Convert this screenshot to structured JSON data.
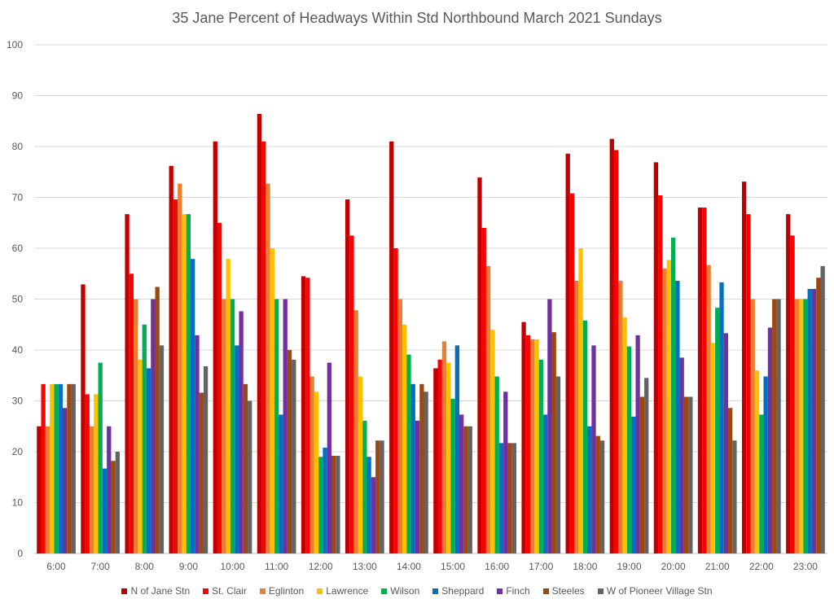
{
  "chart_data": {
    "type": "bar",
    "title": "35 Jane  Percent of Headways Within Std Northbound March 2021 Sundays",
    "xlabel": "",
    "ylabel": "",
    "ylim": [
      0,
      100
    ],
    "yticks": [
      0,
      10,
      20,
      30,
      40,
      50,
      60,
      70,
      80,
      90,
      100
    ],
    "grid": true,
    "legend_position": "bottom",
    "categories": [
      "6:00",
      "7:00",
      "8:00",
      "9:00",
      "10:00",
      "11:00",
      "12:00",
      "13:00",
      "14:00",
      "15:00",
      "16:00",
      "17:00",
      "18:00",
      "19:00",
      "20:00",
      "21:00",
      "22:00",
      "23:00"
    ],
    "series": [
      {
        "name": "N of Jane Stn",
        "color": "#C00000",
        "values": [
          25,
          52.9,
          66.7,
          76.2,
          81,
          86.4,
          54.5,
          69.6,
          81,
          36.4,
          73.9,
          45.5,
          78.6,
          81.5,
          76.9,
          68,
          73.1,
          66.7
        ]
      },
      {
        "name": "St. Clair",
        "color": "#FF0000",
        "values": [
          33.3,
          31.3,
          55,
          69.6,
          65,
          81,
          54.2,
          62.5,
          60,
          38.1,
          64,
          42.9,
          70.8,
          79.3,
          70.4,
          68,
          66.7,
          62.5
        ]
      },
      {
        "name": "Eglinton",
        "color": "#ED7D31",
        "values": [
          25,
          25,
          50,
          72.7,
          50,
          72.7,
          34.8,
          47.8,
          50,
          41.7,
          56.5,
          42.1,
          53.6,
          53.6,
          56,
          56.7,
          50,
          50
        ]
      },
      {
        "name": "Lawrence",
        "color": "#FFC000",
        "values": [
          33.3,
          31.3,
          38.1,
          66.7,
          57.9,
          60,
          31.8,
          34.8,
          45,
          37.5,
          44,
          42.1,
          60,
          46.4,
          57.7,
          41.4,
          36,
          50
        ]
      },
      {
        "name": "Wilson",
        "color": "#00B050",
        "values": [
          33.3,
          37.5,
          45,
          66.7,
          50,
          50,
          19,
          26.1,
          39.1,
          30.4,
          34.8,
          38.1,
          45.8,
          40.7,
          62.1,
          48.3,
          27.3,
          50
        ]
      },
      {
        "name": "Sheppard",
        "color": "#0070C0",
        "values": [
          33.3,
          16.7,
          36.4,
          57.9,
          40.9,
          27.3,
          20.8,
          19,
          33.3,
          40.9,
          21.7,
          27.3,
          25,
          26.9,
          53.6,
          53.3,
          34.8,
          52
        ]
      },
      {
        "name": "Finch",
        "color": "#7030A0",
        "values": [
          28.6,
          25,
          50,
          42.9,
          47.6,
          50,
          37.5,
          15,
          26.1,
          27.3,
          31.8,
          50,
          40.9,
          42.9,
          38.5,
          43.3,
          44.4,
          52
        ]
      },
      {
        "name": "Steeles",
        "color": "#9E480E",
        "values": [
          33.3,
          18.2,
          52.4,
          31.6,
          33.3,
          40,
          19.2,
          22.2,
          33.3,
          25,
          21.7,
          43.5,
          23.1,
          30.8,
          30.8,
          28.6,
          50,
          54.2
        ]
      },
      {
        "name": "W of Pioneer Village Stn",
        "color": "#636363",
        "values": [
          33.3,
          20,
          40.9,
          36.8,
          30,
          38.1,
          19.2,
          22.2,
          31.8,
          25,
          21.7,
          34.8,
          22.2,
          34.5,
          30.8,
          22.2,
          50,
          56.5
        ]
      }
    ]
  }
}
